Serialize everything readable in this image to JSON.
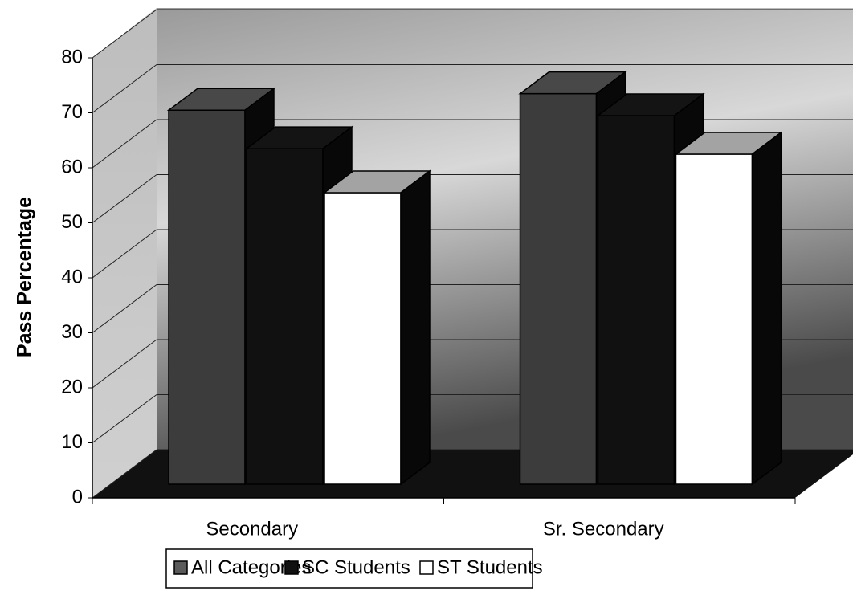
{
  "chart_data": {
    "type": "bar",
    "y_axis_label": "Pass Percentage",
    "categories": [
      "Secondary",
      "Sr. Secondary"
    ],
    "series": [
      {
        "name": "All Categories",
        "color": "#3c3c3c",
        "values": [
          68,
          71
        ]
      },
      {
        "name": "SC Students",
        "color": "#111111",
        "values": [
          61,
          67
        ]
      },
      {
        "name": "ST Students",
        "color": "#ffffff",
        "values": [
          53,
          60
        ]
      }
    ],
    "ylim": [
      0,
      80
    ],
    "yticks": [
      0,
      10,
      20,
      30,
      40,
      50,
      60,
      70,
      80
    ],
    "grid": true,
    "legend": "bottom"
  }
}
